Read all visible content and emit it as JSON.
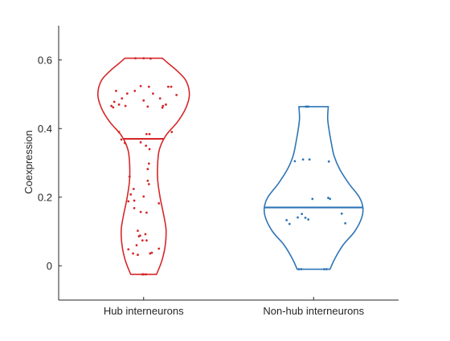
{
  "chart_data": {
    "type": "violin",
    "ylabel": "Coexpression",
    "xlabel": "",
    "ylim": [
      -0.1,
      0.7
    ],
    "yticks": [
      0,
      0.2,
      0.4,
      0.6
    ],
    "ytick_labels": [
      "0",
      "0.2",
      "0.4",
      "0.6"
    ],
    "categories": [
      "Hub interneurons",
      "Non-hub interneurons"
    ],
    "grid": false,
    "groups": [
      {
        "label": "Hub interneurons",
        "color": "#d62728",
        "mean": 0.37,
        "min": -0.025,
        "max": 0.605,
        "density": [
          [
            -0.025,
            0.22
          ],
          [
            0.0,
            0.28
          ],
          [
            0.02,
            0.32
          ],
          [
            0.05,
            0.36
          ],
          [
            0.08,
            0.38
          ],
          [
            0.11,
            0.38
          ],
          [
            0.15,
            0.34
          ],
          [
            0.2,
            0.28
          ],
          [
            0.25,
            0.24
          ],
          [
            0.3,
            0.24
          ],
          [
            0.34,
            0.27
          ],
          [
            0.38,
            0.38
          ],
          [
            0.42,
            0.58
          ],
          [
            0.46,
            0.72
          ],
          [
            0.5,
            0.78
          ],
          [
            0.54,
            0.72
          ],
          [
            0.57,
            0.56
          ],
          [
            0.59,
            0.42
          ],
          [
            0.605,
            0.32
          ]
        ],
        "points": [
          {
            "x": -0.14,
            "y": 0.605
          },
          {
            "x": 0.0,
            "y": 0.605
          },
          {
            "x": 0.12,
            "y": 0.604
          },
          {
            "x": -0.05,
            "y": 0.524
          },
          {
            "x": 0.09,
            "y": 0.522
          },
          {
            "x": 0.42,
            "y": 0.522
          },
          {
            "x": 0.47,
            "y": 0.522
          },
          {
            "x": -0.47,
            "y": 0.51
          },
          {
            "x": -0.15,
            "y": 0.51
          },
          {
            "x": 0.16,
            "y": 0.502
          },
          {
            "x": -0.28,
            "y": 0.502
          },
          {
            "x": 0.56,
            "y": 0.498
          },
          {
            "x": -0.37,
            "y": 0.488
          },
          {
            "x": 0.28,
            "y": 0.488
          },
          {
            "x": 0.0,
            "y": 0.482
          },
          {
            "x": -0.5,
            "y": 0.478
          },
          {
            "x": -0.42,
            "y": 0.47
          },
          {
            "x": 0.38,
            "y": 0.47
          },
          {
            "x": -0.55,
            "y": 0.466
          },
          {
            "x": 0.33,
            "y": 0.466
          },
          {
            "x": -0.31,
            "y": 0.466
          },
          {
            "x": 0.07,
            "y": 0.464
          },
          {
            "x": 0.32,
            "y": 0.461
          },
          {
            "x": -0.52,
            "y": 0.462
          },
          {
            "x": -0.42,
            "y": 0.39
          },
          {
            "x": 0.05,
            "y": 0.384
          },
          {
            "x": 0.1,
            "y": 0.384
          },
          {
            "x": 0.48,
            "y": 0.39
          },
          {
            "x": -0.38,
            "y": 0.368
          },
          {
            "x": -0.32,
            "y": 0.358
          },
          {
            "x": -0.05,
            "y": 0.36
          },
          {
            "x": 0.04,
            "y": 0.35
          },
          {
            "x": 0.1,
            "y": 0.34
          },
          {
            "x": 0.09,
            "y": 0.298
          },
          {
            "x": 0.07,
            "y": 0.282
          },
          {
            "x": 0.07,
            "y": 0.248
          },
          {
            "x": 0.09,
            "y": 0.238
          },
          {
            "x": -0.24,
            "y": 0.26
          },
          {
            "x": -0.17,
            "y": 0.224
          },
          {
            "x": -0.22,
            "y": 0.208
          },
          {
            "x": 0.0,
            "y": 0.202
          },
          {
            "x": 0.26,
            "y": 0.182
          },
          {
            "x": -0.26,
            "y": 0.188
          },
          {
            "x": -0.16,
            "y": 0.19
          },
          {
            "x": -0.16,
            "y": 0.168
          },
          {
            "x": -0.05,
            "y": 0.157
          },
          {
            "x": 0.05,
            "y": 0.155
          },
          {
            "x": -0.1,
            "y": 0.102
          },
          {
            "x": -0.08,
            "y": 0.086
          },
          {
            "x": -0.06,
            "y": 0.088
          },
          {
            "x": 0.03,
            "y": 0.092
          },
          {
            "x": -0.02,
            "y": 0.074
          },
          {
            "x": 0.05,
            "y": 0.074
          },
          {
            "x": -0.12,
            "y": 0.06
          },
          {
            "x": -0.26,
            "y": 0.048
          },
          {
            "x": 0.26,
            "y": 0.05
          },
          {
            "x": -0.18,
            "y": 0.036
          },
          {
            "x": -0.1,
            "y": 0.032
          },
          {
            "x": 0.11,
            "y": 0.036
          },
          {
            "x": 0.14,
            "y": 0.038
          },
          {
            "x": -0.02,
            "y": -0.025
          },
          {
            "x": 0.0,
            "y": -0.025
          },
          {
            "x": 0.04,
            "y": -0.025
          }
        ]
      },
      {
        "label": "Non-hub interneurons",
        "color": "#2e75b6",
        "mean": 0.17,
        "min": -0.01,
        "max": 0.464,
        "density": [
          [
            -0.01,
            0.28
          ],
          [
            0.02,
            0.36
          ],
          [
            0.06,
            0.5
          ],
          [
            0.1,
            0.7
          ],
          [
            0.14,
            0.82
          ],
          [
            0.17,
            0.84
          ],
          [
            0.2,
            0.78
          ],
          [
            0.24,
            0.6
          ],
          [
            0.28,
            0.45
          ],
          [
            0.32,
            0.35
          ],
          [
            0.36,
            0.3
          ],
          [
            0.4,
            0.26
          ],
          [
            0.43,
            0.24
          ],
          [
            0.464,
            0.25
          ]
        ],
        "points": [
          {
            "x": -0.13,
            "y": 0.464
          },
          {
            "x": -0.11,
            "y": 0.464
          },
          {
            "x": -0.09,
            "y": 0.464
          },
          {
            "x": -0.32,
            "y": 0.305
          },
          {
            "x": -0.18,
            "y": 0.31
          },
          {
            "x": -0.07,
            "y": 0.31
          },
          {
            "x": 0.26,
            "y": 0.304
          },
          {
            "x": -0.02,
            "y": 0.195
          },
          {
            "x": 0.25,
            "y": 0.198
          },
          {
            "x": 0.28,
            "y": 0.195
          },
          {
            "x": -0.46,
            "y": 0.133
          },
          {
            "x": -0.41,
            "y": 0.122
          },
          {
            "x": -0.27,
            "y": 0.141
          },
          {
            "x": -0.2,
            "y": 0.151
          },
          {
            "x": -0.14,
            "y": 0.14
          },
          {
            "x": -0.09,
            "y": 0.135
          },
          {
            "x": 0.48,
            "y": 0.152
          },
          {
            "x": 0.54,
            "y": 0.124
          },
          {
            "x": -0.25,
            "y": -0.01
          },
          {
            "x": -0.21,
            "y": -0.01
          },
          {
            "x": 0.18,
            "y": -0.01
          },
          {
            "x": 0.22,
            "y": -0.01
          }
        ]
      }
    ]
  }
}
